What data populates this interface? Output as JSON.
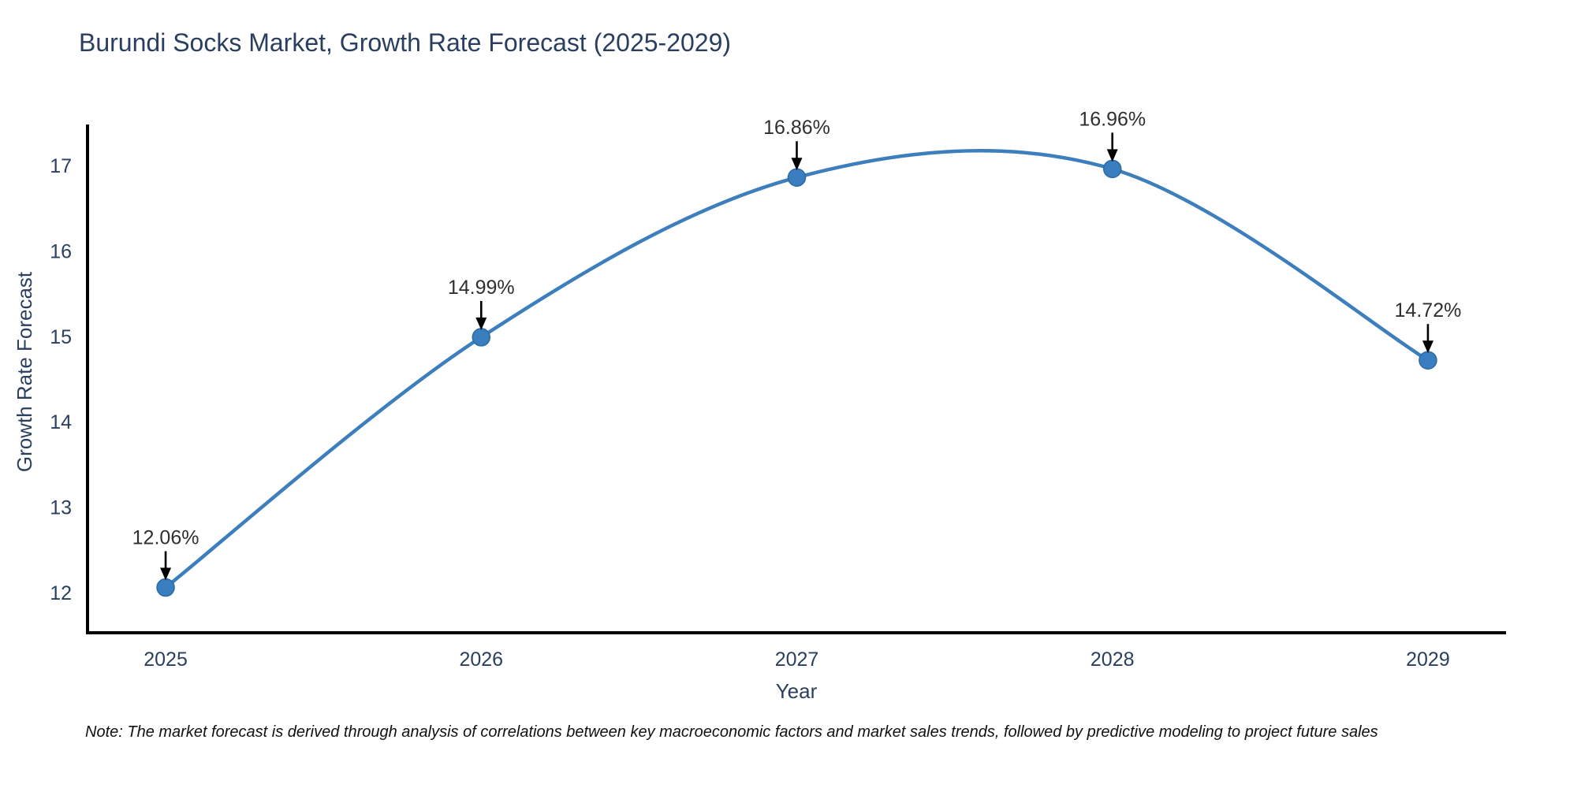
{
  "note": "Note: The market forecast is derived through analysis of correlations between key macroeconomic factors and market sales trends, followed by predictive modeling to project future sales",
  "chart_data": {
    "type": "line",
    "title": "Burundi Socks Market, Growth Rate Forecast (2025-2029)",
    "xlabel": "Year",
    "ylabel": "Growth Rate Forecast",
    "x": [
      2025,
      2026,
      2027,
      2028,
      2029
    ],
    "values": [
      12.06,
      14.99,
      16.86,
      16.96,
      14.72
    ],
    "point_labels": [
      "12.06%",
      "14.99%",
      "16.86%",
      "16.96%",
      "14.72%"
    ],
    "series_name": "Growth Rate Forecast",
    "xtick_labels": [
      "2025",
      "2026",
      "2027",
      "2028",
      "2029"
    ],
    "ytick_values": [
      12,
      13,
      14,
      15,
      16,
      17
    ],
    "xlim": [
      2024.7525,
      2029.2475
    ],
    "ylim": [
      11.53,
      17.48
    ],
    "line_shape": "spline",
    "grid": false,
    "legend_position": "none",
    "annotations_have_arrows": true,
    "colors": {
      "line": "#3d7ebd",
      "marker_fill": "#3a7ebf",
      "marker_edge": "#2a6aa5",
      "axis_line": "#000000",
      "title_text": "#2a3f5f",
      "tick_text": "#2a3f5f",
      "annotation_text": "#2f2f2f",
      "arrow": "#000000",
      "background": "#ffffff"
    }
  }
}
